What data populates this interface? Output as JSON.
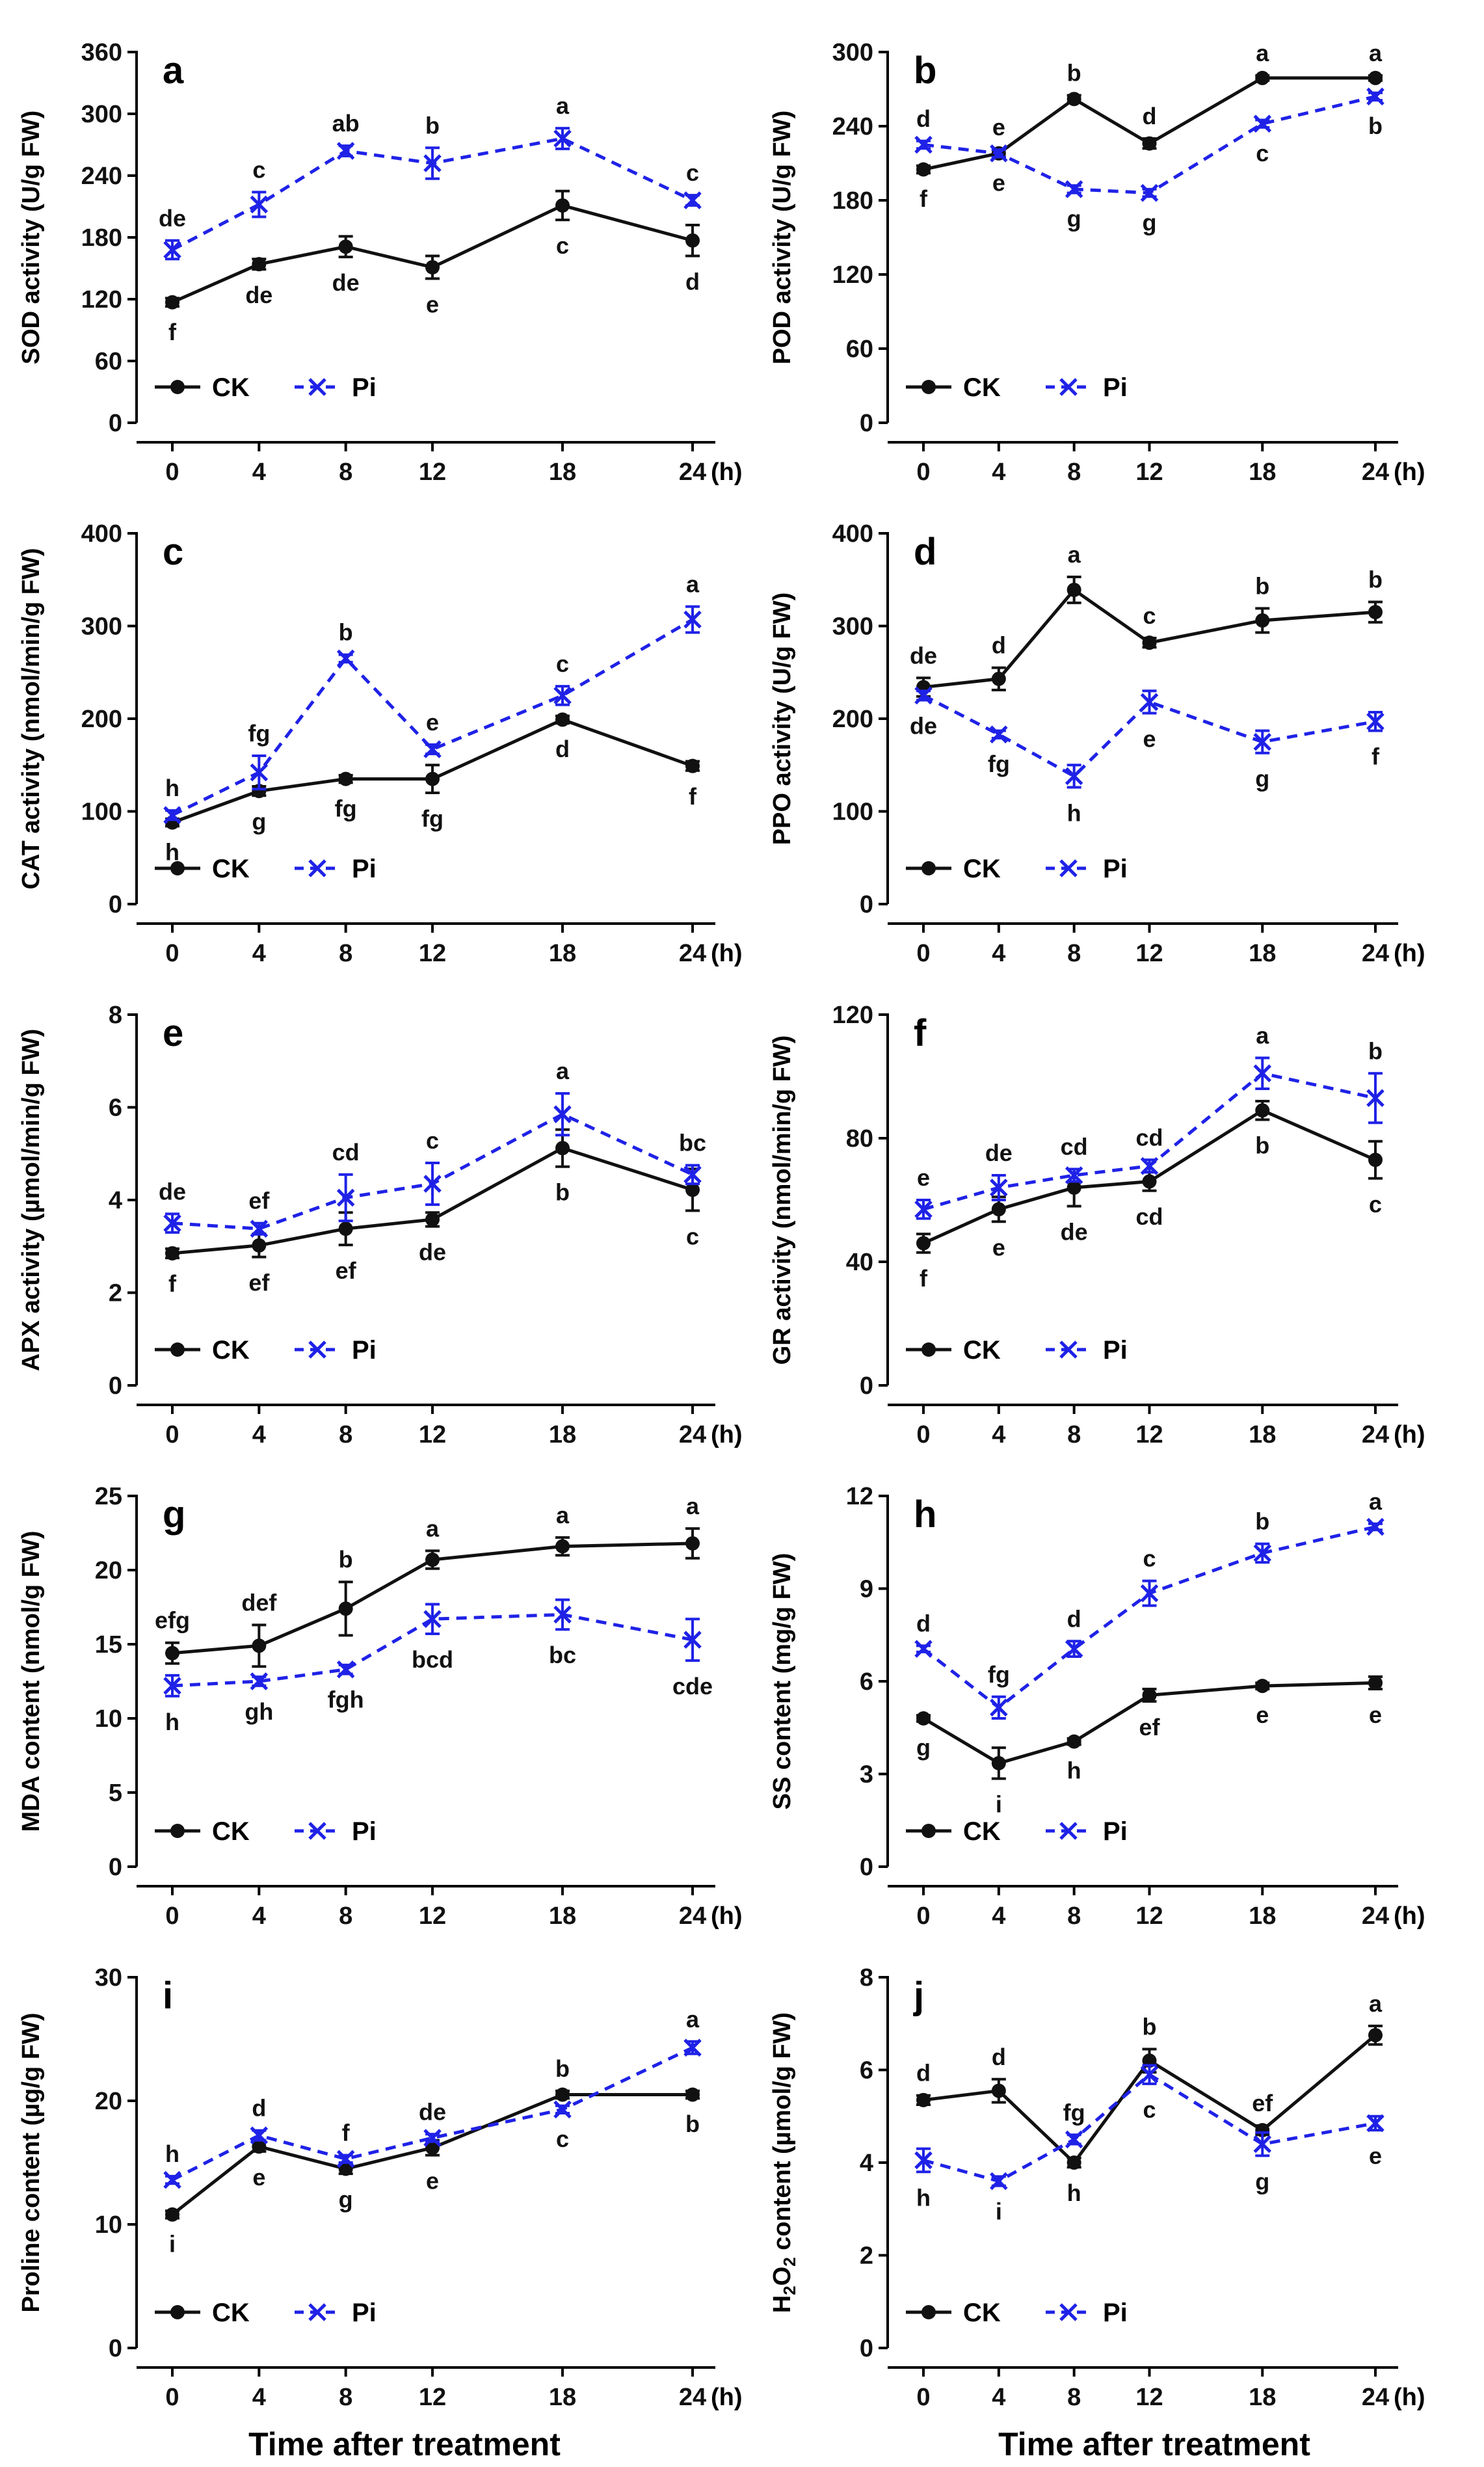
{
  "colors": {
    "ck": "#111111",
    "pi": "#1f22e6"
  },
  "x_unit": "(h)",
  "x_axis_title": "Time after treatment",
  "series_names": [
    "CK",
    "Pi"
  ],
  "chart_data": [
    {
      "type": "line",
      "panel": "a",
      "ylabel": "SOD activity (U/g FW)",
      "x": [
        0,
        4,
        8,
        12,
        18,
        24
      ],
      "xlim": [
        0,
        24
      ],
      "ylim": [
        0,
        360
      ],
      "yticks": [
        0,
        60,
        120,
        180,
        240,
        300,
        360
      ],
      "series": [
        {
          "name": "CK",
          "values": [
            117,
            154,
            171,
            151,
            211,
            177
          ],
          "errors": [
            4,
            5,
            10,
            11,
            14,
            15
          ],
          "letters": [
            "f",
            "de",
            "de",
            "e",
            "c",
            "d"
          ]
        },
        {
          "name": "Pi",
          "values": [
            168,
            212,
            264,
            252,
            276,
            216
          ],
          "errors": [
            9,
            12,
            5,
            15,
            10,
            5
          ],
          "letters": [
            "de",
            "c",
            "ab",
            "b",
            "a",
            "c"
          ]
        }
      ]
    },
    {
      "type": "line",
      "panel": "b",
      "ylabel": "POD activity (U/g FW)",
      "x": [
        0,
        4,
        8,
        12,
        18,
        24
      ],
      "xlim": [
        0,
        24
      ],
      "ylim": [
        0,
        300
      ],
      "yticks": [
        0,
        60,
        120,
        180,
        240,
        300
      ],
      "series": [
        {
          "name": "CK",
          "values": [
            205,
            218,
            262,
            226,
            279,
            279
          ],
          "errors": [
            3,
            3,
            3,
            4,
            2,
            2
          ],
          "letters": [
            "f",
            "e",
            "b",
            "d",
            "a",
            "a"
          ]
        },
        {
          "name": "Pi",
          "values": [
            225,
            218,
            189,
            186,
            242,
            264
          ],
          "errors": [
            3,
            3,
            3,
            3,
            3,
            3
          ],
          "letters": [
            "d",
            "e",
            "g",
            "g",
            "c",
            "b"
          ]
        }
      ]
    },
    {
      "type": "line",
      "panel": "c",
      "ylabel": "CAT activity (nmol/min/g FW)",
      "x": [
        0,
        4,
        8,
        12,
        18,
        24
      ],
      "xlim": [
        0,
        24
      ],
      "ylim": [
        0,
        400
      ],
      "yticks": [
        0,
        100,
        200,
        300,
        400
      ],
      "series": [
        {
          "name": "CK",
          "values": [
            88,
            122,
            135,
            135,
            199,
            149
          ],
          "errors": [
            4,
            5,
            4,
            15,
            4,
            5
          ],
          "letters": [
            "h",
            "g",
            "fg",
            "fg",
            "d",
            "f"
          ]
        },
        {
          "name": "Pi",
          "values": [
            96,
            142,
            265,
            167,
            225,
            307
          ],
          "errors": [
            5,
            18,
            4,
            5,
            10,
            14
          ],
          "letters": [
            "h",
            "fg",
            "b",
            "e",
            "c",
            "a"
          ]
        }
      ]
    },
    {
      "type": "line",
      "panel": "d",
      "ylabel": "PPO activity (U/g FW)",
      "x": [
        0,
        4,
        8,
        12,
        18,
        24
      ],
      "xlim": [
        0,
        24
      ],
      "ylim": [
        0,
        400
      ],
      "yticks": [
        0,
        100,
        200,
        300,
        400
      ],
      "series": [
        {
          "name": "CK",
          "values": [
            234,
            243,
            339,
            282,
            306,
            315
          ],
          "errors": [
            10,
            12,
            14,
            5,
            13,
            11
          ],
          "letters": [
            "de",
            "d",
            "a",
            "c",
            "b",
            "b"
          ]
        },
        {
          "name": "Pi",
          "values": [
            225,
            183,
            138,
            218,
            175,
            197
          ],
          "errors": [
            5,
            4,
            12,
            12,
            12,
            10
          ],
          "letters": [
            "de",
            "fg",
            "h",
            "e",
            "g",
            "f"
          ]
        }
      ]
    },
    {
      "type": "line",
      "panel": "e",
      "ylabel": "APX activity (µmol/min/g FW)",
      "x": [
        0,
        4,
        8,
        12,
        18,
        24
      ],
      "xlim": [
        0,
        24
      ],
      "ylim": [
        0,
        8
      ],
      "yticks": [
        0,
        2,
        4,
        6,
        8
      ],
      "series": [
        {
          "name": "CK",
          "values": [
            2.85,
            3.02,
            3.38,
            3.58,
            5.12,
            4.22
          ],
          "errors": [
            0.1,
            0.25,
            0.35,
            0.15,
            0.4,
            0.45
          ],
          "letters": [
            "f",
            "ef",
            "ef",
            "de",
            "b",
            "c"
          ]
        },
        {
          "name": "Pi",
          "values": [
            3.5,
            3.38,
            4.05,
            4.35,
            5.85,
            4.55
          ],
          "errors": [
            0.2,
            0.12,
            0.5,
            0.45,
            0.45,
            0.2
          ],
          "letters": [
            "de",
            "ef",
            "cd",
            "c",
            "a",
            "bc"
          ]
        }
      ]
    },
    {
      "type": "line",
      "panel": "f",
      "ylabel": "GR activity (nmol/min/g FW)",
      "x": [
        0,
        4,
        8,
        12,
        18,
        24
      ],
      "xlim": [
        0,
        24
      ],
      "ylim": [
        0,
        120
      ],
      "yticks": [
        0,
        40,
        80,
        120
      ],
      "series": [
        {
          "name": "CK",
          "values": [
            46,
            57,
            64,
            66,
            89,
            73
          ],
          "errors": [
            3,
            4,
            6,
            3,
            3,
            6
          ],
          "letters": [
            "f",
            "e",
            "de",
            "cd",
            "b",
            "c"
          ]
        },
        {
          "name": "Pi",
          "values": [
            57,
            64,
            68,
            71,
            101,
            93
          ],
          "errors": [
            3,
            4,
            2,
            2,
            5,
            8
          ],
          "letters": [
            "e",
            "de",
            "cd",
            "cd",
            "a",
            "b"
          ]
        }
      ]
    },
    {
      "type": "line",
      "panel": "g",
      "ylabel": "MDA content (nmol/g FW)",
      "x": [
        0,
        4,
        8,
        12,
        18,
        24
      ],
      "xlim": [
        0,
        24
      ],
      "ylim": [
        0,
        25
      ],
      "yticks": [
        0,
        5,
        10,
        15,
        20,
        25
      ],
      "series": [
        {
          "name": "CK",
          "values": [
            14.4,
            14.9,
            17.4,
            20.7,
            21.6,
            21.8
          ],
          "errors": [
            0.7,
            1.4,
            1.8,
            0.6,
            0.6,
            1.0
          ],
          "letters": [
            "efg",
            "def",
            "b",
            "a",
            "a",
            "a"
          ]
        },
        {
          "name": "Pi",
          "values": [
            12.2,
            12.5,
            13.3,
            16.7,
            17.0,
            15.3
          ],
          "errors": [
            0.7,
            0.3,
            0.3,
            1.0,
            1.0,
            1.4
          ],
          "letters": [
            "h",
            "gh",
            "fgh",
            "bcd",
            "bc",
            "cde"
          ]
        }
      ]
    },
    {
      "type": "line",
      "panel": "h",
      "ylabel": "SS content (mg/g FW)",
      "x": [
        0,
        4,
        8,
        12,
        18,
        24
      ],
      "xlim": [
        0,
        24
      ],
      "ylim": [
        0,
        12
      ],
      "yticks": [
        0,
        3,
        6,
        9,
        12
      ],
      "series": [
        {
          "name": "CK",
          "values": [
            4.8,
            3.35,
            4.05,
            5.55,
            5.85,
            5.95
          ],
          "errors": [
            0.1,
            0.5,
            0.1,
            0.2,
            0.1,
            0.2
          ],
          "letters": [
            "g",
            "i",
            "h",
            "ef",
            "e",
            "e"
          ]
        },
        {
          "name": "Pi",
          "values": [
            7.05,
            5.15,
            7.05,
            8.85,
            10.15,
            11.0
          ],
          "errors": [
            0.1,
            0.35,
            0.25,
            0.4,
            0.3,
            0.1
          ],
          "letters": [
            "d",
            "fg",
            "d",
            "c",
            "b",
            "a"
          ]
        }
      ]
    },
    {
      "type": "line",
      "panel": "i",
      "ylabel": "Proline content (µg/g FW)",
      "x": [
        0,
        4,
        8,
        12,
        18,
        24
      ],
      "xlim": [
        0,
        24
      ],
      "ylim": [
        0,
        30
      ],
      "yticks": [
        0,
        10,
        20,
        30
      ],
      "series": [
        {
          "name": "CK",
          "values": [
            10.8,
            16.3,
            14.5,
            16.2,
            20.5,
            20.5
          ],
          "errors": [
            0.3,
            0.4,
            0.4,
            0.6,
            0.3,
            0.3
          ],
          "letters": [
            "i",
            "e",
            "g",
            "e",
            "b",
            "b"
          ]
        },
        {
          "name": "Pi",
          "values": [
            13.6,
            17.2,
            15.3,
            17.0,
            19.3,
            24.3
          ],
          "errors": [
            0.3,
            0.4,
            0.3,
            0.3,
            0.3,
            0.5
          ],
          "letters": [
            "h",
            "d",
            "f",
            "de",
            "c",
            "a"
          ]
        }
      ]
    },
    {
      "type": "line",
      "panel": "j",
      "ylabel": "H2O2 content (µmol/g FW)",
      "x": [
        0,
        4,
        8,
        12,
        18,
        24
      ],
      "xlim": [
        0,
        24
      ],
      "ylim": [
        0,
        8
      ],
      "yticks": [
        0,
        2,
        4,
        6,
        8
      ],
      "series": [
        {
          "name": "CK",
          "values": [
            5.35,
            5.55,
            4.0,
            6.2,
            4.7,
            6.75
          ],
          "errors": [
            0.1,
            0.25,
            0.1,
            0.25,
            0.1,
            0.2
          ],
          "letters": [
            "d",
            "d",
            "h",
            "b",
            "ef",
            "a"
          ]
        },
        {
          "name": "Pi",
          "values": [
            4.05,
            3.6,
            4.5,
            5.9,
            4.4,
            4.85
          ],
          "errors": [
            0.25,
            0.1,
            0.1,
            0.2,
            0.25,
            0.15
          ],
          "letters": [
            "h",
            "i",
            "fg",
            "c",
            "g",
            "e"
          ]
        }
      ]
    }
  ]
}
